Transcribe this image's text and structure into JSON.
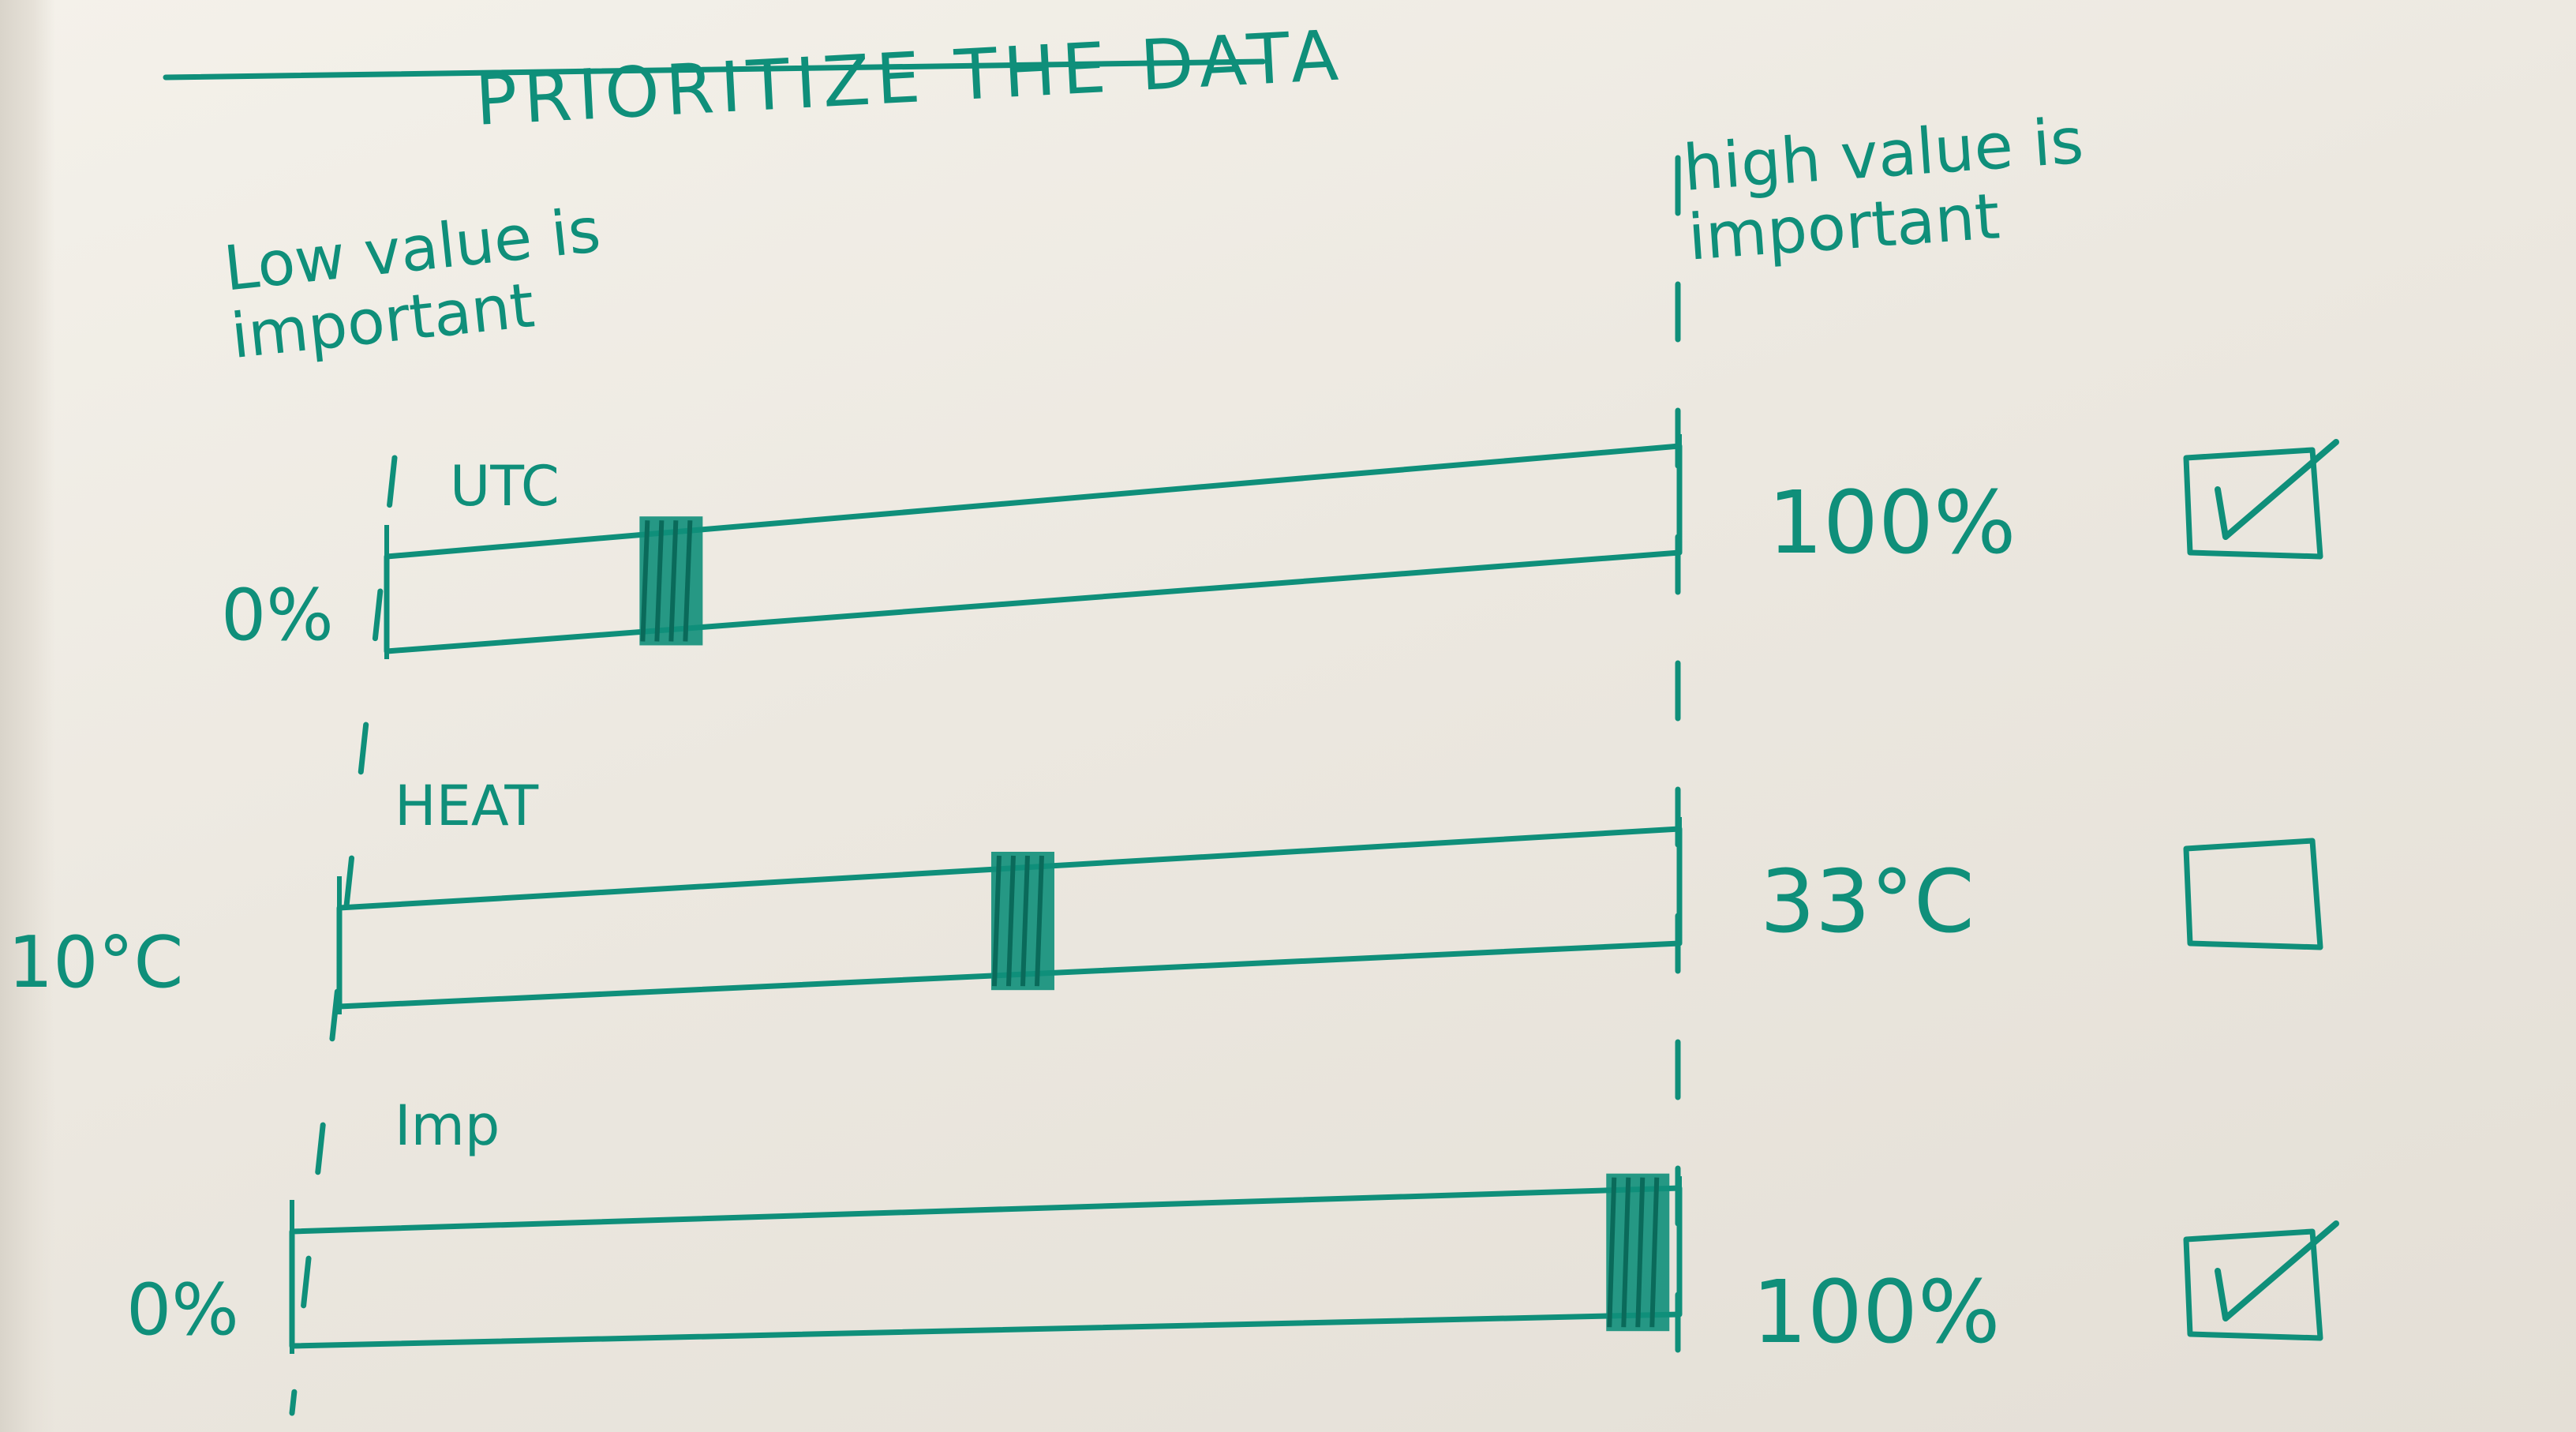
{
  "title": "PRIORITIZE THE DATA",
  "low_label": "Low value is\nimportant",
  "high_label": "high value is\nimportant",
  "ink_color": "#0f8f7a",
  "rows": [
    {
      "name": "UTC",
      "min": "0%",
      "max": "100%",
      "level": 0.22,
      "checked": true
    },
    {
      "name": "HEAT",
      "min": "10°C",
      "max": "33°C",
      "level": 0.51,
      "checked": false
    },
    {
      "name": "Imp",
      "min": "0%",
      "max": "100%",
      "level": 0.97,
      "checked": true
    }
  ]
}
